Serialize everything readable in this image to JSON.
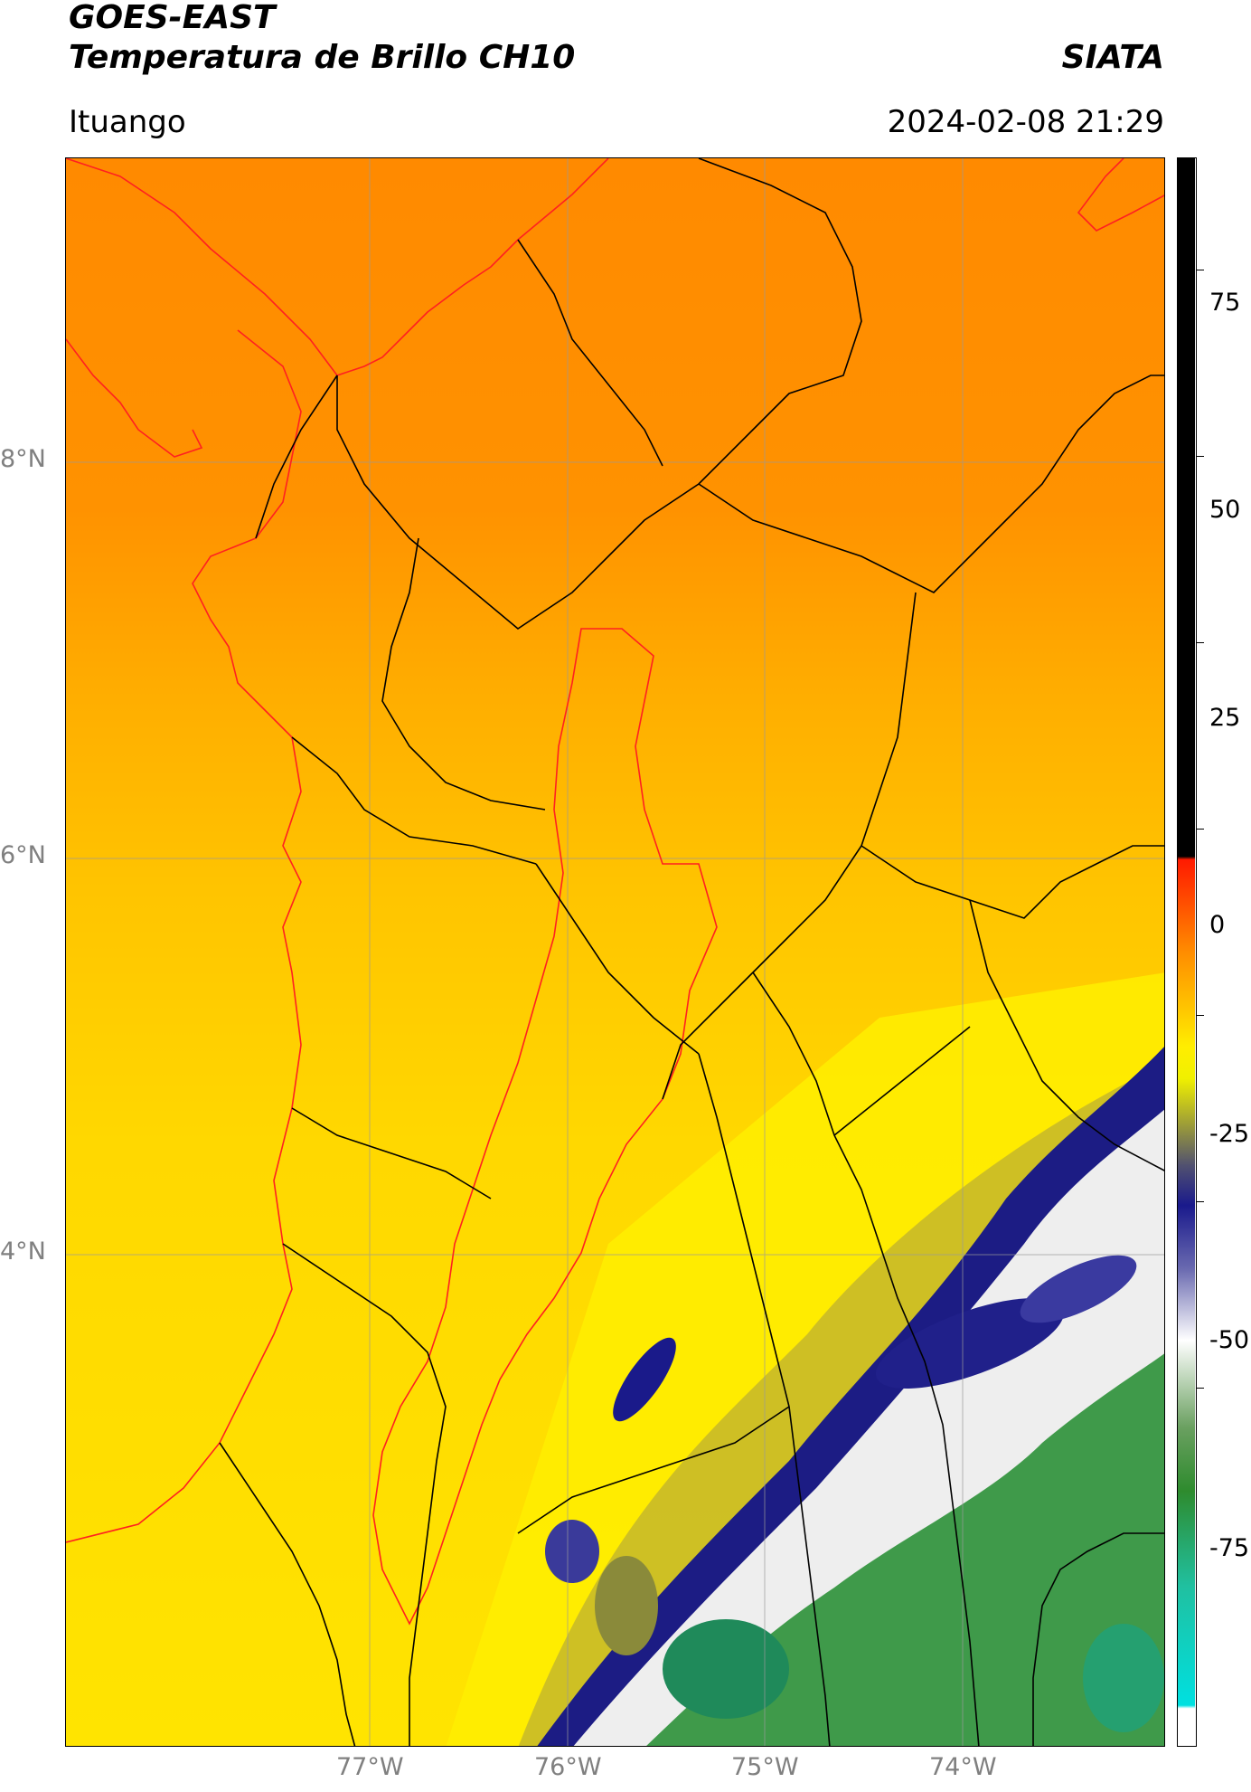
{
  "header": {
    "satellite": "GOES-EAST",
    "product": "Temperatura de Brillo CH10",
    "agency": "SIATA",
    "region": "Ituango",
    "datetime": "2024-02-08 21:29"
  },
  "axes": {
    "lat_labels": [
      "8°N",
      "6°N",
      "4°N"
    ],
    "lon_labels": [
      "77°W",
      "76°W",
      "75°W",
      "74°W"
    ]
  },
  "colorbar": {
    "ticks": [
      "75",
      "50",
      "25",
      "0",
      "-25",
      "-50",
      "-75"
    ],
    "colors": {
      "black": "#000000",
      "red": "#ff2000",
      "orange": "#ff8c00",
      "yellow": "#ffee00",
      "olive": "#9a9a3a",
      "navy": "#1a1a8c",
      "white": "#ffffff",
      "green": "#2e8b2e",
      "teal": "#20c0a0",
      "cyan": "#00e0e0"
    }
  },
  "map": {
    "colors": {
      "warm_top": "#ff8a00",
      "mid": "#ffc800",
      "cold_edge": "#ffee00",
      "cloud_navy": "#1c1c84",
      "cloud_white": "#f4f4f4",
      "cloud_green": "#2f8f3a",
      "border_black": "#000000",
      "border_red": "#ff2020",
      "grid": "#999999"
    }
  }
}
